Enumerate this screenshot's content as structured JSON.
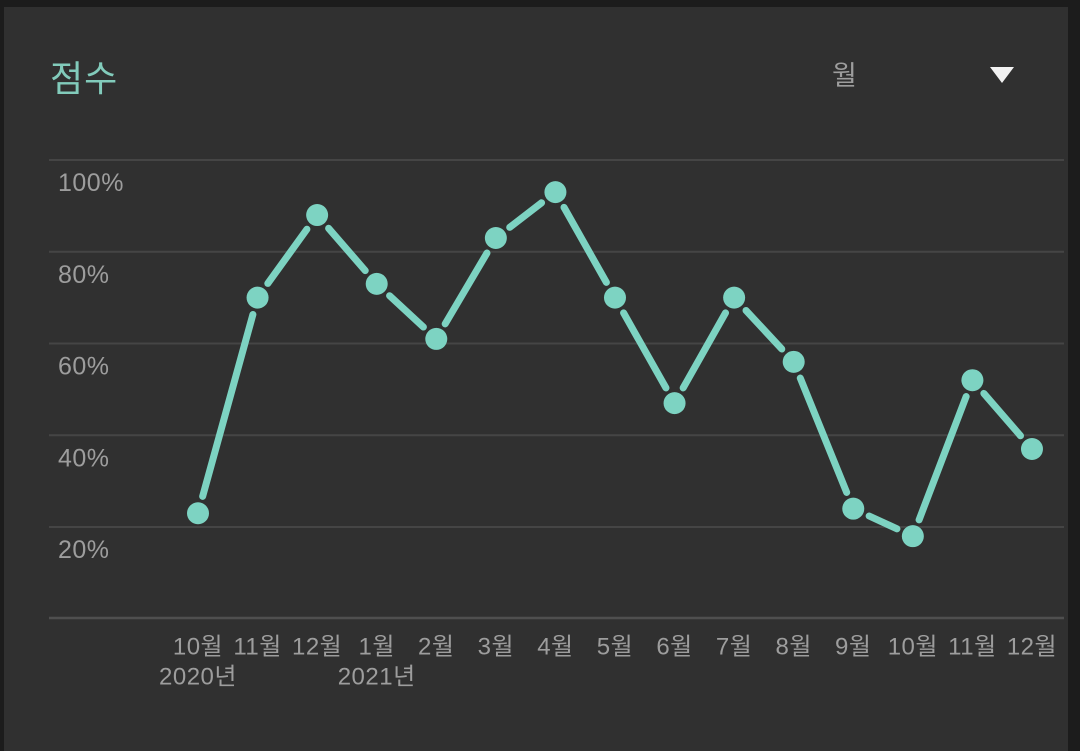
{
  "header": {
    "title": "점수"
  },
  "controls": {
    "period_dropdown": {
      "label": "월",
      "icon": "chevron-down-icon"
    }
  },
  "colors": {
    "page_background": "#1c1c1c",
    "panel_background": "#303030",
    "title": "#82cbbb",
    "series": "#7dd3c2",
    "gridline": "#454545",
    "axis_line": "#4f4f4f",
    "tick_label": "#9d9d9d",
    "dropdown_arrow": "#f2f2f2"
  },
  "chart_data": {
    "type": "line",
    "title": "점수",
    "categories": [
      "10월",
      "11월",
      "12월",
      "1월",
      "2월",
      "3월",
      "4월",
      "5월",
      "6월",
      "7월",
      "8월",
      "9월",
      "10월",
      "11월",
      "12월"
    ],
    "year_markers": [
      {
        "index": 0,
        "label": "2020년"
      },
      {
        "index": 3,
        "label": "2021년"
      }
    ],
    "values": [
      23,
      70,
      88,
      73,
      61,
      83,
      93,
      70,
      47,
      70,
      56,
      24,
      18,
      52,
      37
    ],
    "series_name": "점수",
    "xlabel": "",
    "ylabel": "",
    "y_ticks": [
      20,
      40,
      60,
      80,
      100
    ],
    "y_tick_suffix": "%",
    "ylim": [
      0,
      100
    ],
    "grid": true,
    "legend": "none",
    "marker": "circle"
  }
}
